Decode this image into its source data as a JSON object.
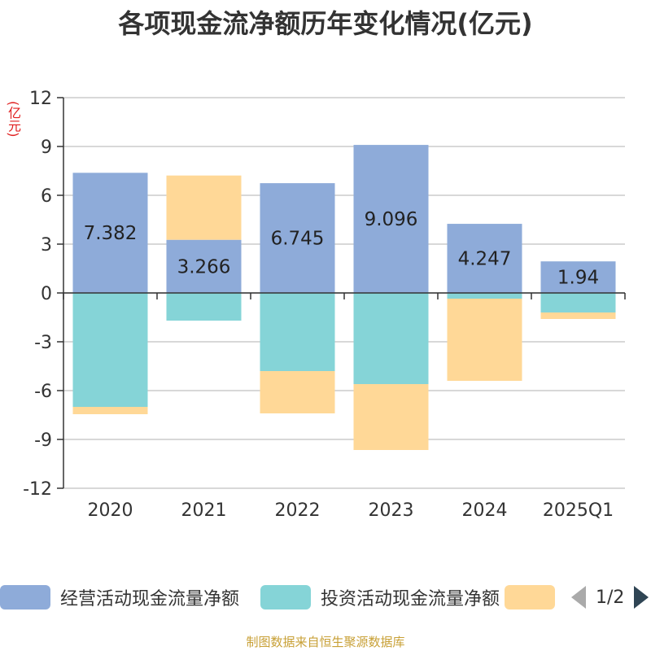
{
  "chart_data": {
    "type": "bar",
    "stacked": true,
    "title": "各项现金流净额历年变化情况(亿元)",
    "unit_label": "(亿元)",
    "categories": [
      "2020",
      "2021",
      "2022",
      "2023",
      "2024",
      "2025Q1"
    ],
    "ylim": [
      -12,
      12
    ],
    "yticks": [
      12,
      9,
      6,
      3,
      0,
      -3,
      -6,
      -9,
      -12
    ],
    "grid": true,
    "legend_position": "bottom",
    "series": [
      {
        "name": "经营活动现金流量净额",
        "color": "#8eabd9",
        "values": [
          7.382,
          3.266,
          6.745,
          9.096,
          4.247,
          1.94
        ],
        "labels": [
          "7.382",
          "3.266",
          "6.745",
          "9.096",
          "4.247",
          "1.94"
        ]
      },
      {
        "name": "投资活动现金流量净额",
        "color": "#85d4d7",
        "values": [
          -7.0,
          -1.7,
          -4.8,
          -5.6,
          -0.35,
          -1.2
        ]
      },
      {
        "name": "",
        "color": "#ffd897",
        "values": [
          -0.45,
          3.95,
          -2.6,
          -4.05,
          -5.05,
          -0.4
        ]
      }
    ]
  },
  "legend": {
    "items": [
      {
        "label": "经营活动现金流量净额",
        "color": "#8eabd9"
      },
      {
        "label": "投资活动现金流量净额",
        "color": "#85d4d7"
      },
      {
        "label": "",
        "color": "#ffd897"
      }
    ],
    "page_indicator": "1/2"
  },
  "source": "制图数据来自恒生聚源数据库"
}
